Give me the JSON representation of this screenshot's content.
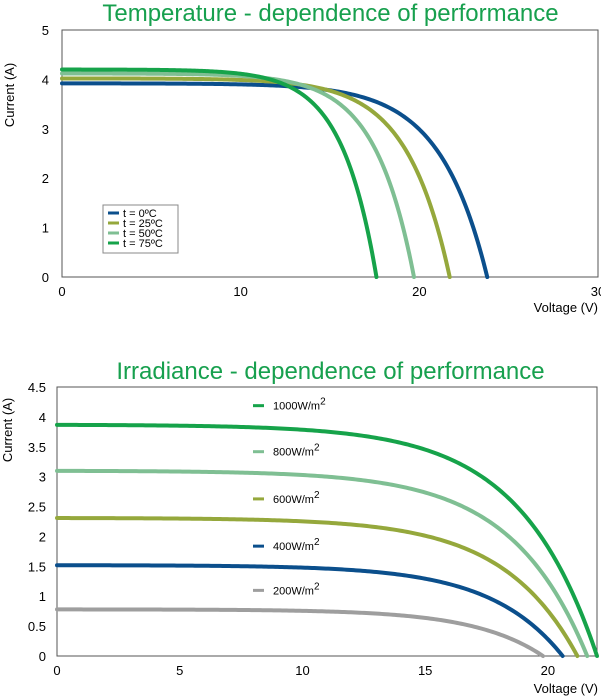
{
  "chart_data": [
    {
      "type": "line",
      "title": "Temperature - dependence of performance",
      "xlabel": "Voltage (V)",
      "ylabel": "Current (A)",
      "xlim": [
        0,
        30
      ],
      "ylim": [
        0,
        5
      ],
      "x_ticks": [
        "0",
        "10",
        "20",
        "30"
      ],
      "y_ticks": [
        "0",
        "1",
        "2",
        "3",
        "4",
        "5"
      ],
      "grid": false,
      "legend_position": "bottom-left",
      "series": [
        {
          "name": "t = 0ºC",
          "color": "#0b4f8c",
          "isc": 3.92,
          "voc": 23.8,
          "shape": 9
        },
        {
          "name": "t = 25ºC",
          "color": "#95a83c",
          "isc": 4.02,
          "voc": 21.7,
          "shape": 9
        },
        {
          "name": "t = 50ºC",
          "color": "#7fbf93",
          "isc": 4.12,
          "voc": 19.7,
          "shape": 9
        },
        {
          "name": "t = 75ºC",
          "color": "#16a34a",
          "isc": 4.2,
          "voc": 17.6,
          "shape": 9
        }
      ]
    },
    {
      "type": "line",
      "title": "Irradiance - dependence of performance",
      "xlabel": "Voltage (V)",
      "ylabel": "Current (A)",
      "xlim": [
        0,
        22
      ],
      "ylim": [
        0,
        4.5
      ],
      "x_ticks": [
        "0",
        "5",
        "10",
        "15",
        "20"
      ],
      "y_ticks": [
        "0",
        "0.5",
        "1",
        "1.5",
        "2",
        "2.5",
        "3",
        "3.5",
        "4",
        "4.5"
      ],
      "grid": false,
      "series": [
        {
          "name": "1000W/m",
          "sup": "2",
          "color": "#16a34a",
          "isc": 3.87,
          "voc": 22.0,
          "shape": 7
        },
        {
          "name": "800W/m",
          "sup": "2",
          "color": "#7fbf93",
          "isc": 3.1,
          "voc": 21.6,
          "shape": 7
        },
        {
          "name": "600W/m",
          "sup": "2",
          "color": "#95a83c",
          "isc": 2.31,
          "voc": 21.2,
          "shape": 7
        },
        {
          "name": "400W/m",
          "sup": "2",
          "color": "#0b4f8c",
          "isc": 1.52,
          "voc": 20.6,
          "shape": 7
        },
        {
          "name": "200W/m",
          "sup": "2",
          "color": "#9e9e9e",
          "isc": 0.78,
          "voc": 19.8,
          "shape": 7
        }
      ]
    }
  ]
}
